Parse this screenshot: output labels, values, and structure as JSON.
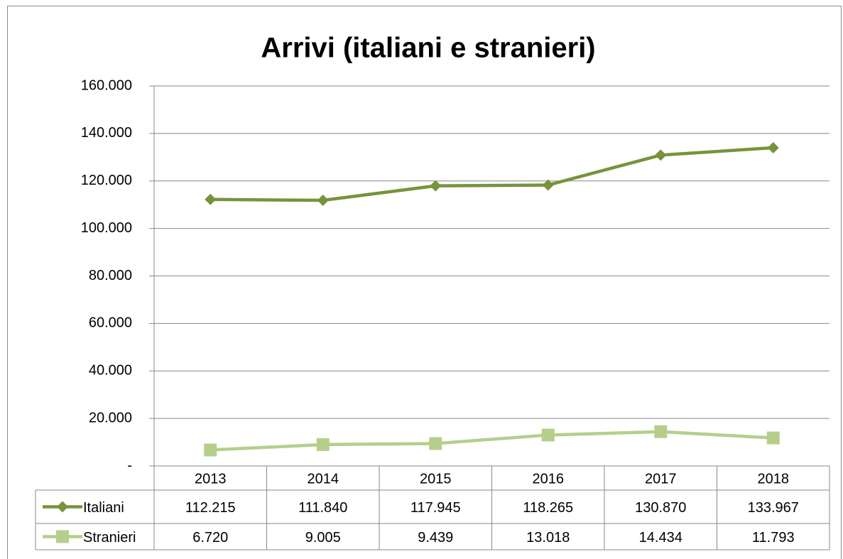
{
  "chart_data": {
    "type": "line",
    "title": "Arrivi (italiani e stranieri)",
    "categories": [
      "2013",
      "2014",
      "2015",
      "2016",
      "2017",
      "2018"
    ],
    "series": [
      {
        "name": "Italiani",
        "color": "#77933c",
        "marker": "diamond",
        "values": [
          112215,
          111840,
          117945,
          118265,
          130870,
          133967
        ],
        "value_labels": [
          "112.215",
          "111.840",
          "117.945",
          "118.265",
          "130.870",
          "133.967"
        ]
      },
      {
        "name": "Stranieri",
        "color": "#b5cf8b",
        "marker": "square",
        "values": [
          6720,
          9005,
          9439,
          13018,
          14434,
          11793
        ],
        "value_labels": [
          "6.720",
          "9.005",
          "9.439",
          "13.018",
          "14.434",
          "11.793"
        ]
      }
    ],
    "ylim": [
      0,
      160000
    ],
    "yticks": [
      {
        "value": 0,
        "label": "-"
      },
      {
        "value": 20000,
        "label": "20.000"
      },
      {
        "value": 40000,
        "label": "40.000"
      },
      {
        "value": 60000,
        "label": "60.000"
      },
      {
        "value": 80000,
        "label": "80.000"
      },
      {
        "value": 100000,
        "label": "100.000"
      },
      {
        "value": 120000,
        "label": "120.000"
      },
      {
        "value": 140000,
        "label": "140.000"
      },
      {
        "value": 160000,
        "label": "160.000"
      }
    ],
    "grid": true,
    "data_table": true
  }
}
